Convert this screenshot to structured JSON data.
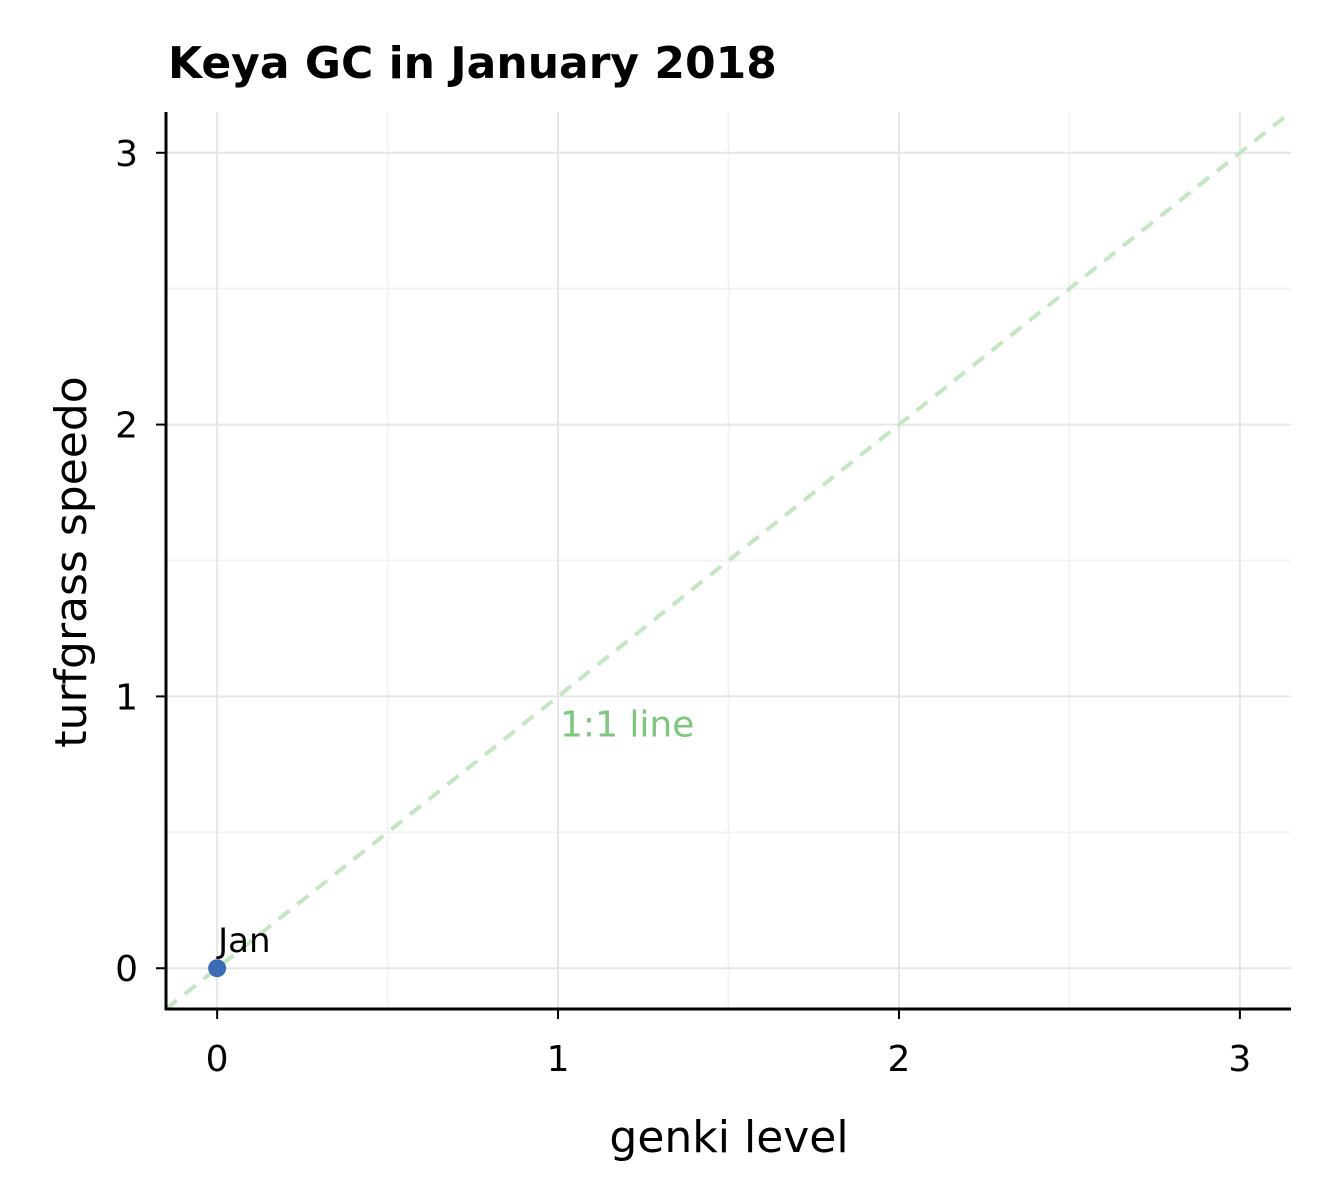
{
  "chart_data": {
    "type": "scatter",
    "title": "Keya GC in January 2018",
    "xlabel": "genki level",
    "ylabel": "turfgrass speedo",
    "xlim": [
      -0.15,
      3.15
    ],
    "ylim": [
      -0.15,
      3.15
    ],
    "xticks": [
      0,
      1,
      2,
      3
    ],
    "yticks": [
      0,
      1,
      2,
      3
    ],
    "grid": true,
    "legend": "none",
    "points": [
      {
        "label": "Jan",
        "x": 0,
        "y": 0
      }
    ],
    "reference_line": {
      "label": "1:1 line",
      "slope": 1,
      "intercept": 0,
      "style": "dashed"
    }
  },
  "colors": {
    "point": "#3a6db5",
    "reference_line": "#c3e6c3",
    "reference_label": "#7dc67d",
    "grid_major": "#e6e6e6",
    "grid_minor": "#f3f3f3",
    "axis": "#000000"
  }
}
